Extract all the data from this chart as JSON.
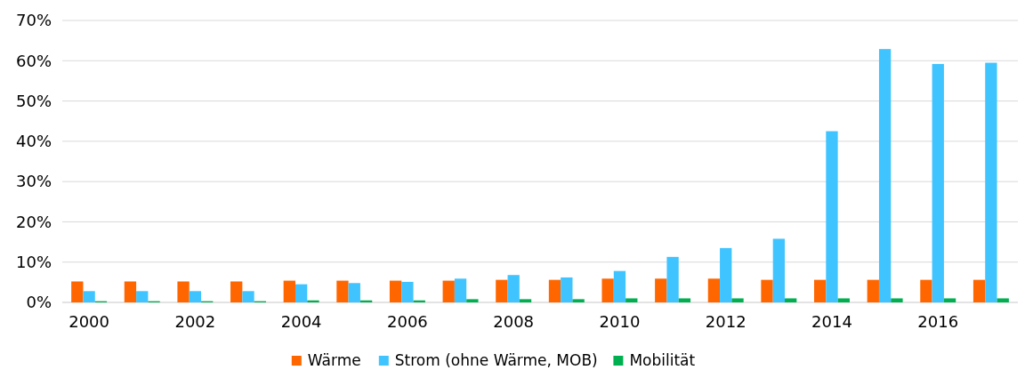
{
  "chart_data": {
    "type": "bar",
    "categories": [
      "2000",
      null,
      "2002",
      null,
      "2004",
      null,
      "2006",
      null,
      "2008",
      null,
      "2010",
      null,
      "2012",
      null,
      "2014",
      null,
      "2016",
      null
    ],
    "series": [
      {
        "name": "Wärme",
        "color": "#ff6600",
        "values": [
          5.2,
          5.2,
          5.2,
          5.2,
          5.4,
          5.4,
          5.4,
          5.4,
          5.6,
          5.6,
          5.9,
          5.9,
          5.9,
          5.6,
          5.6,
          5.6,
          5.6,
          5.6
        ]
      },
      {
        "name": "Strom (ohne Wärme, MOB)",
        "color": "#40c4ff",
        "values": [
          2.8,
          2.8,
          2.8,
          2.8,
          4.5,
          4.8,
          5.1,
          5.9,
          6.8,
          6.2,
          7.8,
          11.3,
          13.5,
          15.8,
          42.5,
          62.9,
          59.2,
          59.5
        ]
      },
      {
        "name": "Mobilität",
        "color": "#00b050",
        "values": [
          0.3,
          0.3,
          0.3,
          0.3,
          0.5,
          0.5,
          0.5,
          0.8,
          0.8,
          0.8,
          1.0,
          1.0,
          1.0,
          1.0,
          1.0,
          1.0,
          1.0,
          1.0
        ]
      }
    ],
    "ylim": [
      0,
      70
    ],
    "yticks": [
      {
        "value": 0,
        "label": "0%"
      },
      {
        "value": 10,
        "label": "10%"
      },
      {
        "value": 20,
        "label": "20%"
      },
      {
        "value": 30,
        "label": "30%"
      },
      {
        "value": 40,
        "label": "40%"
      },
      {
        "value": 50,
        "label": "50%"
      },
      {
        "value": 60,
        "label": "60%"
      },
      {
        "value": 70,
        "label": "70%"
      }
    ],
    "grid": "y",
    "legend": "bottom"
  }
}
